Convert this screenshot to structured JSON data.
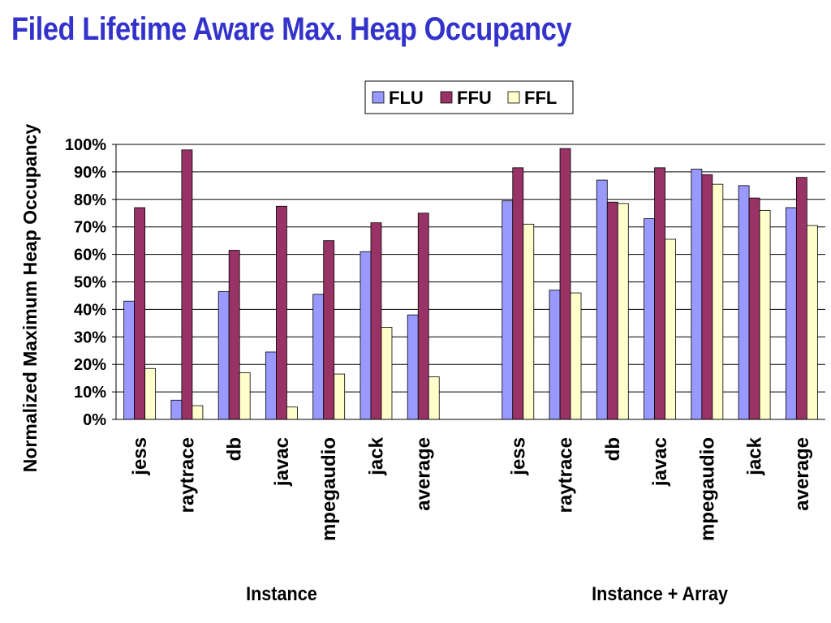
{
  "slide": {
    "title": "Filed Lifetime Aware Max. Heap Occupancy",
    "title_color": "#3333cc"
  },
  "chart_data": {
    "type": "bar",
    "title": "",
    "ylabel": "Normalized Maximum Heap Occupancy",
    "ylim": [
      0,
      100
    ],
    "yticks": [
      "0%",
      "10%",
      "20%",
      "30%",
      "40%",
      "50%",
      "60%",
      "70%",
      "80%",
      "90%",
      "100%"
    ],
    "grid": true,
    "legend_position": "top-right",
    "groups": [
      {
        "label": "Instance",
        "categories": [
          "jess",
          "raytrace",
          "db",
          "javac",
          "mpegaudio",
          "jack",
          "average"
        ],
        "series": [
          {
            "name": "FLU",
            "values": [
              43,
              7,
              46.5,
              24.5,
              45.5,
              61,
              38
            ]
          },
          {
            "name": "FFU",
            "values": [
              77,
              98,
              61.5,
              77.5,
              65,
              71.5,
              75
            ]
          },
          {
            "name": "FFL",
            "values": [
              18.5,
              5,
              17,
              4.5,
              16.5,
              33.5,
              15.5
            ]
          }
        ]
      },
      {
        "label": "Instance + Array",
        "categories": [
          "jess",
          "raytrace",
          "db",
          "javac",
          "mpegaudio",
          "jack",
          "average"
        ],
        "series": [
          {
            "name": "FLU",
            "values": [
              79.5,
              47,
              87,
              73,
              91,
              85,
              77
            ]
          },
          {
            "name": "FFU",
            "values": [
              91.5,
              98.5,
              79,
              91.5,
              89,
              80.5,
              88
            ]
          },
          {
            "name": "FFL",
            "values": [
              71,
              46,
              78.5,
              65.5,
              85.5,
              76,
              70.5
            ]
          }
        ]
      }
    ],
    "series_colors": {
      "FLU": "#9999ff",
      "FFU": "#993366",
      "FFL": "#ffffcc"
    }
  }
}
